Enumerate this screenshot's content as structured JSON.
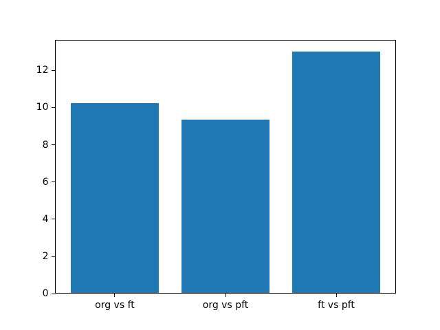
{
  "chart_data": {
    "type": "bar",
    "title": "",
    "categories": [
      "org vs ft",
      "org vs pft",
      "ft vs pft"
    ],
    "values": [
      10.25,
      9.35,
      13.0
    ],
    "xlabel": "",
    "ylabel": "",
    "ylim": [
      0,
      13.65
    ],
    "yticks": [
      0,
      2,
      4,
      6,
      8,
      10,
      12
    ],
    "xlim": [
      -0.54,
      2.54
    ],
    "bar_width": 0.8,
    "grid": false,
    "legend": "none",
    "colors": {
      "bar": "#1f77b4",
      "axis": "#000000",
      "text": "#000000",
      "background": "#ffffff"
    }
  }
}
